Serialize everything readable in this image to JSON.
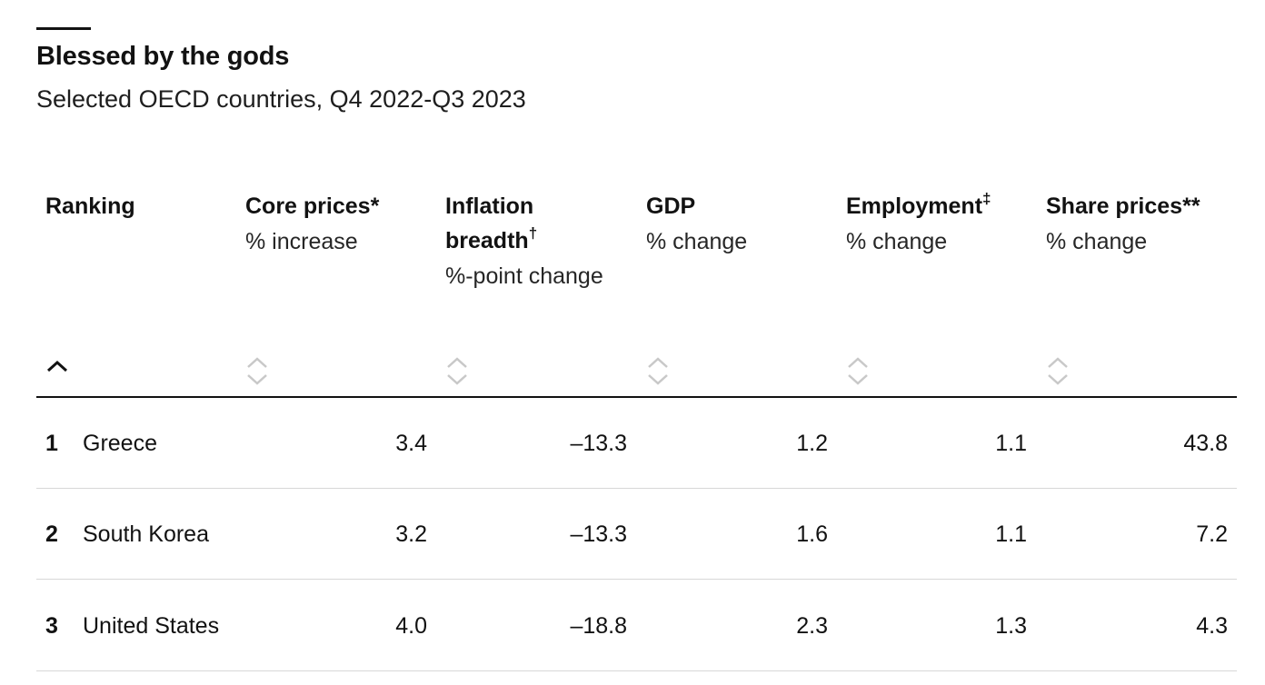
{
  "chart_data": {
    "type": "table",
    "title": "Blessed by the gods",
    "subtitle": "Selected OECD countries, Q4 2022-Q3 2023",
    "columns": [
      {
        "key": "ranking",
        "title": "Ranking",
        "mark": "",
        "unit": ""
      },
      {
        "key": "core_prices",
        "title": "Core prices",
        "mark": "*",
        "unit": "% increase"
      },
      {
        "key": "inflation_breadth",
        "title": "Inflation breadth",
        "mark": "†",
        "unit": "%-point change"
      },
      {
        "key": "gdp",
        "title": "GDP",
        "mark": "",
        "unit": "% change"
      },
      {
        "key": "employment",
        "title": "Employment",
        "mark": "‡",
        "unit": "% change"
      },
      {
        "key": "share_prices",
        "title": "Share prices",
        "mark": "**",
        "unit": "% change"
      }
    ],
    "sort": {
      "column": "ranking",
      "direction": "ascending"
    },
    "rows": [
      {
        "rank": "1",
        "country": "Greece",
        "core_prices": "3.4",
        "inflation_breadth": "–13.3",
        "gdp": "1.2",
        "employment": "1.1",
        "share_prices": "43.8"
      },
      {
        "rank": "2",
        "country": "South Korea",
        "core_prices": "3.2",
        "inflation_breadth": "–13.3",
        "gdp": "1.6",
        "employment": "1.1",
        "share_prices": "7.2"
      },
      {
        "rank": "3",
        "country": "United States",
        "core_prices": "4.0",
        "inflation_breadth": "–18.8",
        "gdp": "2.3",
        "employment": "1.3",
        "share_prices": "4.3"
      }
    ]
  },
  "icons": {
    "active_sort": "chevron-up-icon",
    "inactive_sort": "sort-updown-icon"
  },
  "colors": {
    "text": "#121212",
    "sort_active": "#121212",
    "sort_inactive": "#c8c8c8",
    "row_divider": "#d7d7d7"
  }
}
